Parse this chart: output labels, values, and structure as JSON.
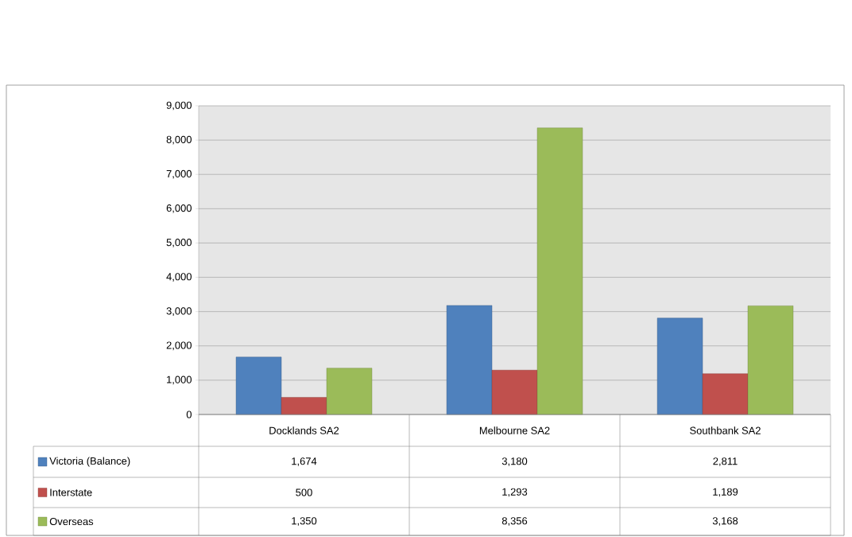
{
  "chart_data": {
    "type": "bar",
    "categories": [
      "Docklands SA2",
      "Melbourne SA2",
      "Southbank SA2"
    ],
    "series": [
      {
        "name": "Victoria (Balance)",
        "color": "#4f81bd",
        "values": [
          1674,
          3180,
          2811
        ],
        "value_labels": [
          "1,674",
          "3,180",
          "2,811"
        ]
      },
      {
        "name": "Interstate",
        "color": "#c0504d",
        "values": [
          500,
          1293,
          1189
        ],
        "value_labels": [
          "500",
          "1,293",
          "1,189"
        ]
      },
      {
        "name": "Overseas",
        "color": "#9bbb59",
        "values": [
          1350,
          8356,
          3168
        ],
        "value_labels": [
          "1,350",
          "8,356",
          "3,168"
        ]
      }
    ],
    "ylim": [
      0,
      9000
    ],
    "yticks": [
      0,
      {
        "value": 1000,
        "label": "1,000"
      },
      {
        "value": 2000,
        "label": "2,000"
      },
      {
        "value": 3000,
        "label": "3,000"
      },
      {
        "value": 4000,
        "label": "4,000"
      },
      {
        "value": 5000,
        "label": "5,000"
      },
      {
        "value": 6000,
        "label": "6,000"
      },
      {
        "value": 7000,
        "label": "7,000"
      },
      {
        "value": 8000,
        "label": "8,000"
      },
      {
        "value": 9000,
        "label": "9,000"
      }
    ],
    "grid": "y",
    "legend": "bottom"
  }
}
